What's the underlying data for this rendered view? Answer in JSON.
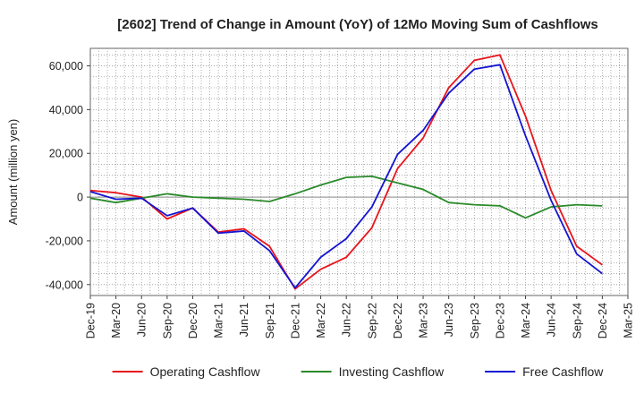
{
  "chart_data": {
    "type": "line",
    "title": "[2602]  Trend of Change in Amount (YoY) of 12Mo Moving Sum of Cashflows",
    "xlabel": "",
    "ylabel": "Amount (million yen)",
    "ylim": [
      -45000,
      68000
    ],
    "yticks": [
      60000,
      40000,
      20000,
      0,
      -20000,
      -40000
    ],
    "ytick_labels": [
      "60,000",
      "40,000",
      "20,000",
      "0",
      "-20,000",
      "-40,000"
    ],
    "categories": [
      "Dec-19",
      "Mar-20",
      "Jun-20",
      "Sep-20",
      "Dec-20",
      "Mar-21",
      "Jun-21",
      "Sep-21",
      "Dec-21",
      "Mar-22",
      "Jun-22",
      "Sep-22",
      "Dec-22",
      "Mar-23",
      "Jun-23",
      "Sep-23",
      "Dec-23",
      "Mar-24",
      "Jun-24",
      "Sep-24",
      "Dec-24",
      "Mar-25"
    ],
    "grid": true,
    "legend_position": "bottom",
    "series": [
      {
        "name": "Operating Cashflow",
        "color": "#e8141c",
        "values": [
          3000,
          2000,
          0,
          -10000,
          -5000,
          -16000,
          -14500,
          -22500,
          -42000,
          -33000,
          -27500,
          -14000,
          13000,
          27000,
          50000,
          62500,
          65000,
          37000,
          3000,
          -22500,
          -31000,
          null
        ]
      },
      {
        "name": "Investing Cashflow",
        "color": "#2a8a2a",
        "values": [
          -500,
          -2500,
          -500,
          1500,
          0,
          -500,
          -1000,
          -2000,
          1500,
          5500,
          9000,
          9500,
          6500,
          3500,
          -2500,
          -3500,
          -4000,
          -9500,
          -4500,
          -3500,
          -4000,
          null
        ]
      },
      {
        "name": "Free Cashflow",
        "color": "#1414d2",
        "values": [
          2500,
          -1000,
          -500,
          -8500,
          -5000,
          -16500,
          -15500,
          -24500,
          -41500,
          -27500,
          -19000,
          -4500,
          19500,
          30500,
          47500,
          58500,
          60500,
          28000,
          -1500,
          -26000,
          -35000,
          null
        ]
      }
    ]
  }
}
